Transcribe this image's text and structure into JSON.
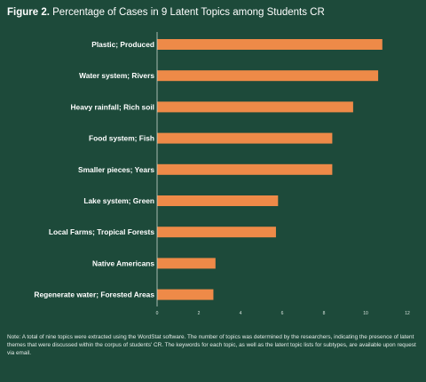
{
  "figure": {
    "label": "Figure 2.",
    "title": "Percentage of Cases in 9 Latent Topics among Students CR",
    "note": "Note: A total of nine topics were extracted using the WordStat software. The number of topics was determined by the researchers, indicating the presence of latent themes that were discussed within the corpus of students' CR. The keywords for each topic, as well as the latent topic lists for subtypes, are available upon request via email."
  },
  "colors": {
    "background": "#1d4a3a",
    "bar": "#ee8a48",
    "text": "#ffffff"
  },
  "chart_data": {
    "type": "bar",
    "orientation": "horizontal",
    "title": "Percentage of Cases in 9 Latent Topics among Students CR",
    "xlabel": "",
    "ylabel": "",
    "categories": [
      "Plastic; Produced",
      "Water system; Rivers",
      "Heavy rainfall; Rich soil",
      "Food system; Fish",
      "Smaller pieces; Years",
      "Lake system; Green",
      "Local Farms; Tropical Forests",
      "Native Americans",
      "Regenerate water; Forested Areas"
    ],
    "values": [
      10.8,
      10.6,
      9.4,
      8.4,
      8.4,
      5.8,
      5.7,
      2.8,
      2.7
    ],
    "ticks": [
      "0",
      "2",
      "4",
      "6",
      "8",
      "10",
      "12"
    ],
    "xlim": [
      0,
      12
    ],
    "grid": false,
    "legend": "none"
  }
}
